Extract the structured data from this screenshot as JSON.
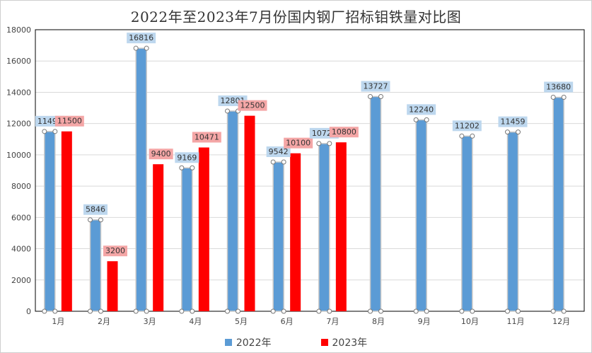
{
  "chart_data": {
    "type": "bar",
    "title": "2022年至2023年7月份国内钢厂招标钼铁量对比图",
    "categories": [
      "1月",
      "2月",
      "3月",
      "4月",
      "5月",
      "6月",
      "7月",
      "8月",
      "9月",
      "10月",
      "11月",
      "12月"
    ],
    "series": [
      {
        "name": "2022年",
        "color": "#5b9bd5",
        "label_bg": "#bdd7ee",
        "values": [
          11495,
          5846,
          16816,
          9169,
          12801,
          9542,
          10725,
          13727,
          12240,
          11202,
          11459,
          13680
        ]
      },
      {
        "name": "2023年",
        "color": "#ff0000",
        "label_bg": "#f4a6a6",
        "values": [
          11500,
          3200,
          9400,
          10471,
          12500,
          10100,
          10800,
          null,
          null,
          null,
          null,
          null
        ]
      }
    ],
    "ylim": [
      0,
      18000
    ],
    "yticks": [
      0,
      2000,
      4000,
      6000,
      8000,
      10000,
      12000,
      14000,
      16000,
      18000
    ],
    "grid": true,
    "legend_position": "bottom"
  }
}
